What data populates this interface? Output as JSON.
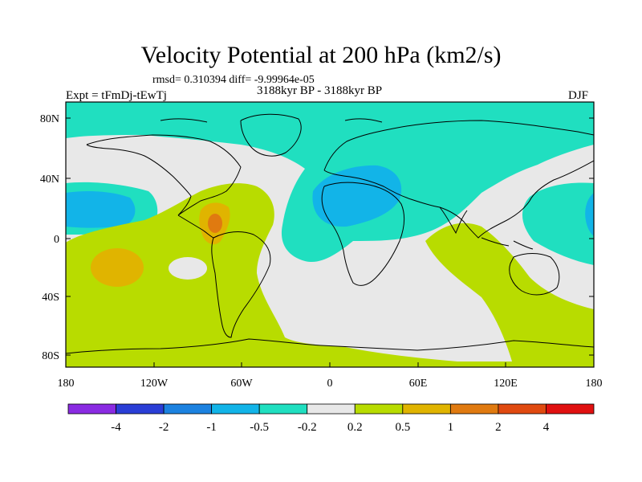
{
  "title": "Velocity Potential at 200 hPa (km2/s)",
  "stats_line": "rmsd= 0.310394 diff= -9.99964e-05",
  "experiment": "Expt = tFmDj-tEwTj",
  "period": "3188kyr BP - 3188kyr BP",
  "season": "DJF",
  "lat_labels": [
    "80N",
    "40N",
    "0",
    "40S",
    "80S"
  ],
  "lon_labels": [
    "180",
    "120W",
    "60W",
    "0",
    "60E",
    "120E",
    "180"
  ],
  "colorbar": {
    "colors": [
      "#8a2be2",
      "#2a3ed6",
      "#1c82e0",
      "#12b4e8",
      "#20dfc0",
      "#e8e8e8",
      "#b8dc00",
      "#e0b400",
      "#e07a10",
      "#e04a10",
      "#e01010"
    ],
    "labels": [
      "-4",
      "-2",
      "-1",
      "-0.5",
      "-0.2",
      "0.2",
      "0.5",
      "1",
      "2",
      "4"
    ]
  },
  "colors": {
    "neg_weak": "#20dfc0",
    "neg_mid": "#12b4e8",
    "neutral": "#e8e8e8",
    "pos_weak": "#b8dc00",
    "pos_mid": "#e0b400",
    "pos_strong": "#e07a10"
  }
}
